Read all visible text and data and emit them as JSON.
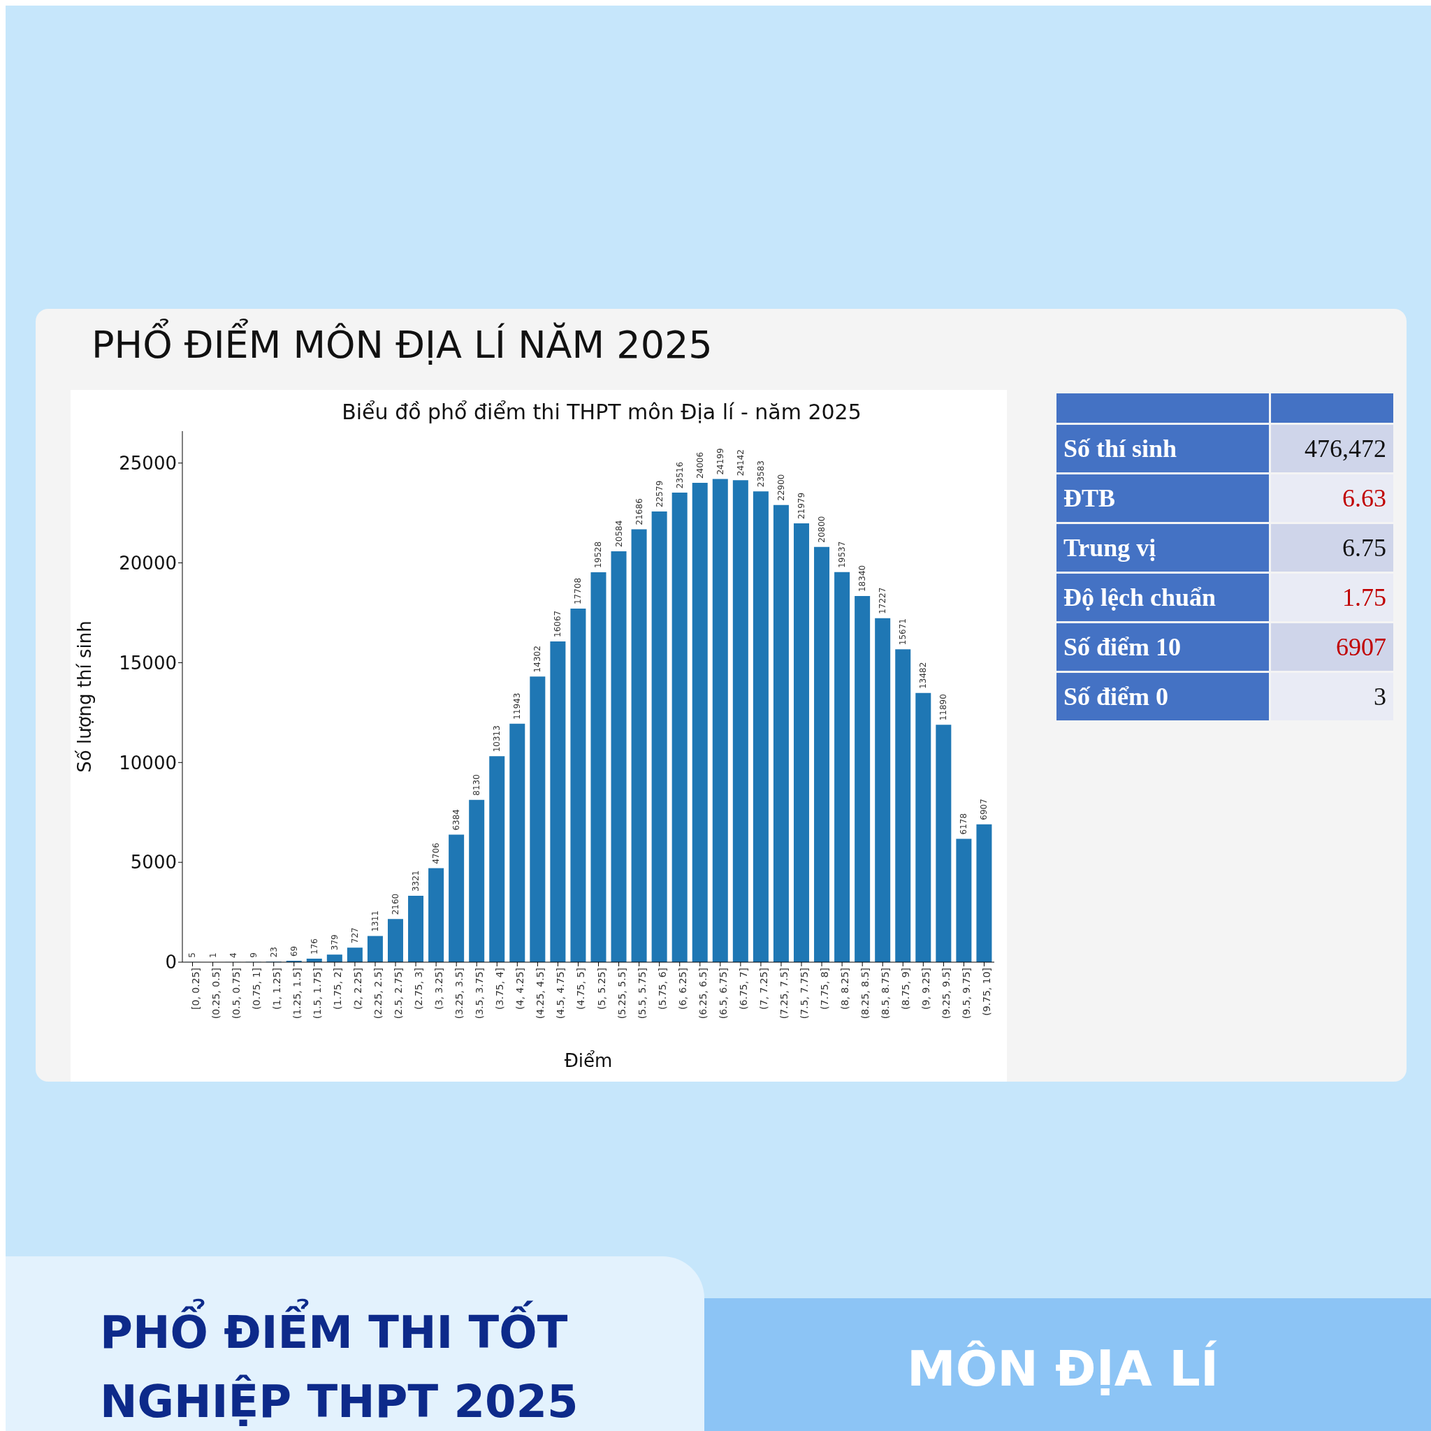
{
  "chart_data": {
    "type": "bar",
    "title": "PHỔ ĐIỂM MÔN ĐỊA LÍ NĂM 2025",
    "subtitle": "Biểu đồ phổ điểm thi THPT môn Địa lí - năm 2025",
    "xlabel": "Điểm",
    "ylabel": "Số lượng thí sinh",
    "categories": [
      "[0, 0.25]",
      "(0.25, 0.5]",
      "(0.5, 0.75]",
      "(0.75, 1]",
      "(1, 1.25]",
      "(1.25, 1.5]",
      "(1.5, 1.75]",
      "(1.75, 2]",
      "(2, 2.25]",
      "(2.25, 2.5]",
      "(2.5, 2.75]",
      "(2.75, 3]",
      "(3, 3.25]",
      "(3.25, 3.5]",
      "(3.5, 3.75]",
      "(3.75, 4]",
      "(4, 4.25]",
      "(4.25, 4.5]",
      "(4.5, 4.75]",
      "(4.75, 5]",
      "(5, 5.25]",
      "(5.25, 5.5]",
      "(5.5, 5.75]",
      "(5.75, 6]",
      "(6, 6.25]",
      "(6.25, 6.5]",
      "(6.5, 6.75]",
      "(6.75, 7]",
      "(7, 7.25]",
      "(7.25, 7.5]",
      "(7.5, 7.75]",
      "(7.75, 8]",
      "(8, 8.25]",
      "(8.25, 8.5]",
      "(8.5, 8.75]",
      "(8.75, 9]",
      "(9, 9.25]",
      "(9.25, 9.5]",
      "(9.5, 9.75]",
      "(9.75, 10]"
    ],
    "values": [
      5,
      1,
      4,
      9,
      23,
      69,
      176,
      379,
      727,
      1311,
      2160,
      3321,
      4706,
      6384,
      8130,
      10313,
      11943,
      14302,
      16067,
      17708,
      19528,
      20584,
      21686,
      22579,
      23516,
      24006,
      24199,
      24142,
      23583,
      22900,
      21979,
      20800,
      19537,
      18340,
      17227,
      15671,
      13482,
      11890,
      6178,
      6907
    ],
    "color": "#1f77b4",
    "data_labels": true,
    "grid": false,
    "legend": false,
    "ylim": [
      0,
      26600
    ],
    "yticks": [
      0,
      5000,
      10000,
      15000,
      20000,
      25000
    ],
    "annotations": [
      "PHỔ ĐIỂM THI TỐT NGHIỆP THPT 2025",
      "MÔN ĐỊA LÍ",
      "Số thí sinh",
      "476,472",
      "ĐTB",
      "6.63",
      "Trung vị",
      "6.75",
      "Độ lệch chuẩn",
      "1.75",
      "Số điểm 10",
      "6907",
      "Số điểm 0",
      "3"
    ]
  }
}
